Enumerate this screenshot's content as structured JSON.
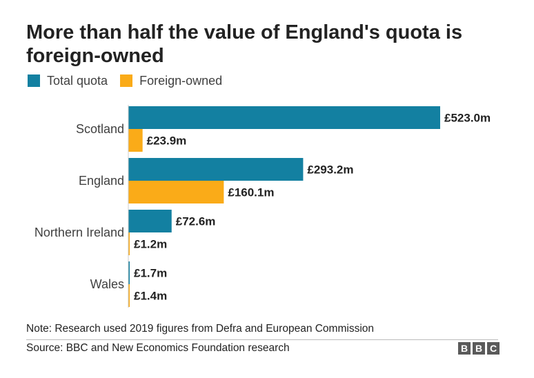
{
  "title": "More than half the value of England's quota is foreign-owned",
  "legend": [
    {
      "label": "Total quota",
      "color": "#1380A1"
    },
    {
      "label": "Foreign-owned",
      "color": "#FAAB18"
    }
  ],
  "chart_data": {
    "type": "bar",
    "orientation": "horizontal",
    "categories": [
      "Scotland",
      "England",
      "Northern Ireland",
      "Wales"
    ],
    "series": [
      {
        "name": "Total quota",
        "color": "#1380A1",
        "values": [
          523.0,
          293.2,
          72.6,
          1.7
        ],
        "labels": [
          "£523.0m",
          "£293.2m",
          "£72.6m",
          "£1.7m"
        ]
      },
      {
        "name": "Foreign-owned",
        "color": "#FAAB18",
        "values": [
          23.9,
          160.1,
          1.2,
          1.4
        ],
        "labels": [
          "£23.9m",
          "£160.1m",
          "£1.2m",
          "£1.4m"
        ]
      }
    ],
    "unit": "£m",
    "xlim": [
      0,
      523.0
    ],
    "grid": false
  },
  "note": "Note: Research used 2019 figures from Defra and European Commission",
  "source": "Source: BBC and New Economics Foundation research",
  "logo": [
    "B",
    "B",
    "C"
  ]
}
